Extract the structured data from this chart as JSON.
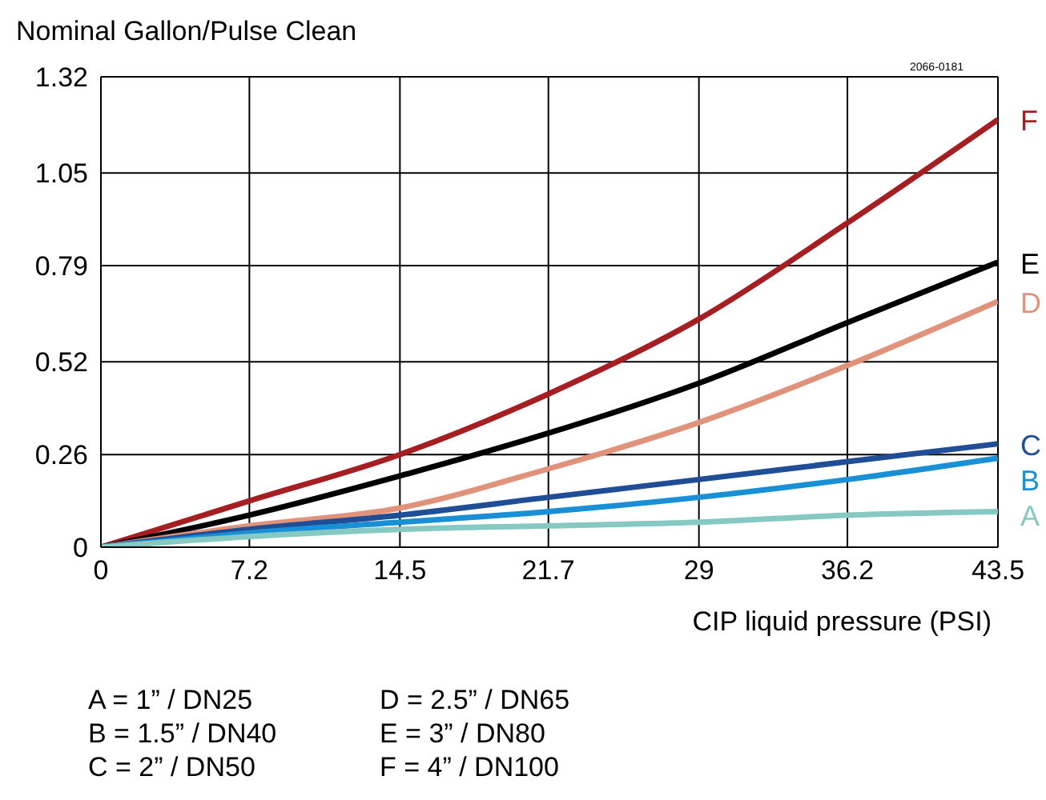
{
  "chart_data": {
    "type": "line",
    "ylabel": "Nominal Gallon/Pulse Clean",
    "xlabel": "CIP liquid pressure (PSI)",
    "x": [
      0,
      7.2,
      14.5,
      21.7,
      29,
      36.2,
      43.5
    ],
    "series": [
      {
        "name": "F",
        "color": "#a51f22",
        "values": [
          0,
          0.13,
          0.26,
          0.43,
          0.64,
          0.91,
          1.2
        ]
      },
      {
        "name": "E",
        "color": "#000000",
        "values": [
          0,
          0.09,
          0.2,
          0.32,
          0.46,
          0.63,
          0.8
        ]
      },
      {
        "name": "D",
        "color": "#e0937a",
        "values": [
          0,
          0.06,
          0.11,
          0.22,
          0.35,
          0.51,
          0.69
        ]
      },
      {
        "name": "C",
        "color": "#1f4e96",
        "values": [
          0,
          0.05,
          0.09,
          0.14,
          0.19,
          0.24,
          0.29
        ]
      },
      {
        "name": "B",
        "color": "#1990d6",
        "values": [
          0,
          0.04,
          0.07,
          0.1,
          0.14,
          0.19,
          0.25
        ]
      },
      {
        "name": "A",
        "color": "#86c9c3",
        "values": [
          0,
          0.03,
          0.05,
          0.06,
          0.07,
          0.09,
          0.1
        ]
      }
    ],
    "xlim": [
      0,
      43.5
    ],
    "xticks": [
      0,
      7.2,
      14.5,
      21.7,
      29,
      36.2,
      43.5
    ],
    "ylim": [
      0,
      1.32
    ],
    "yticks": [
      0,
      0.26,
      0.52,
      0.79,
      1.05,
      1.32
    ],
    "grid": true,
    "legend": false,
    "marker": "none",
    "line_style": "solid",
    "annotations": [
      "2066-0181",
      "A = 1” / DN25",
      "B = 1.5” / DN40",
      "C = 2” / DN50",
      "D = 2.5” / DN65",
      "E = 3” / DN80",
      "F = 4” / DN100"
    ]
  }
}
